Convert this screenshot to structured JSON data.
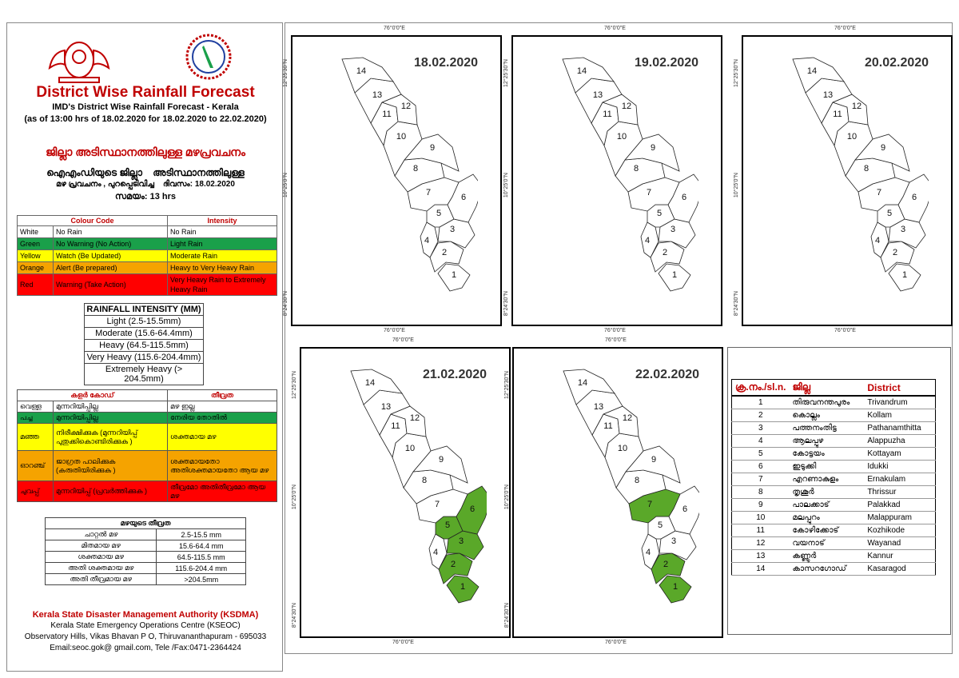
{
  "header": {
    "title": "District Wise Rainfall Forecast",
    "subtitle": "IMD's District Wise Rainfall Forecast - Kerala",
    "issued": "(as of 13:00 hrs of 18.02.2020  for 18.02.2020  to 22.02.2020)",
    "ml_title": "ജില്ലാ അടിസ്ഥാനത്തിലുള്ള മഴപ്രവചനം",
    "ml_line1": "ഐഎംഡിയുടെ ജില്ലാ    അടിസ്ഥാനത്തിലുള്ള",
    "ml_line2": "മഴ പ്രവചനം , പുറപ്പെടിവിച്ച    ദിവസം: 18.02.2020",
    "ml_line3": "സമയം: 13 hrs"
  },
  "colour_code": {
    "headers": [
      "Colour Code",
      "Intensity"
    ],
    "rows": [
      {
        "colour": "White",
        "code": "No Rain",
        "intensity": "No Rain"
      },
      {
        "colour": "Green",
        "code": "No Warning (No Action)",
        "intensity": "Light Rain"
      },
      {
        "colour": "Yellow",
        "code": "Watch (Be Updated)",
        "intensity": "Moderate Rain"
      },
      {
        "colour": "Orange",
        "code": "Alert (Be prepared)",
        "intensity": "Heavy to Very Heavy Rain"
      },
      {
        "colour": "Red",
        "code": "Warning (Take Action)",
        "intensity": "Very Heavy Rain to Extremely Heavy Rain"
      }
    ]
  },
  "rainfall_intensity": {
    "header": "RAINFALL INTENSITY (MM)",
    "rows": [
      "Light (2.5-15.5mm)",
      "Moderate (15.6-64.4mm)",
      "Heavy (64.5-115.5mm)",
      "Very Heavy (115.6-204.4mm)",
      "Extremely Heavy (> 204.5mm)"
    ]
  },
  "ml_colour_code": {
    "headers": [
      "കളർ കോഡ്",
      "തീവ്രത"
    ],
    "rows": [
      {
        "colour": "വെള്ള",
        "code": "മുന്നറിയിപ്പില്ല",
        "intensity": "മഴ ഇല്ല"
      },
      {
        "colour": "പച്ച",
        "code": "മുന്നറിയിപ്പില്ല",
        "intensity": "നേരിയ തോതിൽ"
      },
      {
        "colour": "മഞ്ഞ",
        "code": "നിരീക്ഷിക്കുക (മുന്നറിയിപ്പ് പുതുക്കികൊണ്ടിരിക്കുക )",
        "intensity": "ശക്തമായ മഴ"
      },
      {
        "colour": "ഓറഞ്ച്",
        "code": "ജാഗ്രത പാലിക്കുക (കരുതിയിരിക്കുക )",
        "intensity": "ശക്തമായതോ അതിശക്തമായതോ ആയ മഴ"
      },
      {
        "colour": "ചുവപ്പ്",
        "code": "മുന്നറിയിപ്പ് (പ്രവർത്തിക്കുക )",
        "intensity": "തീവ്രമോ അതിതീവ്രമോ ആയ മഴ"
      }
    ]
  },
  "ml_intensity": {
    "header": "മഴയുടെ തീവ്രത",
    "rows": [
      {
        "label": "ചാറ്റൽ മഴ",
        "range": "2.5-15.5 mm"
      },
      {
        "label": "മിതമായ മഴ",
        "range": "15.6-64.4 mm"
      },
      {
        "label": "ശക്തമായ മഴ",
        "range": "64.5-115.5 mm"
      },
      {
        "label": "അതി ശക്തമായ മഴ",
        "range": "115.6-204.4 mm"
      },
      {
        "label": "അതി തീവ്രമായ മഴ",
        "range": ">204.5mm"
      }
    ]
  },
  "footer": {
    "org": "Kerala State Disaster Management Authority (KSDMA)",
    "centre": "Kerala State Emergency Operations Centre (KSEOC)",
    "address": "Observatory Hills, Vikas Bhavan P O, Thiruvananthapuram - 695033",
    "contact": "Email:seoc.gok@ gmail.com, Tele /Fax:0471-2364424"
  },
  "coords": {
    "lon": "76°0'0\"E",
    "lat_top": "12°25'30\"N",
    "lat_mid": "10°25'0\"N",
    "lat_bot": "8°24'30\"N"
  },
  "maps": [
    {
      "date": "18.02.2020",
      "green_districts": []
    },
    {
      "date": "19.02.2020",
      "green_districts": []
    },
    {
      "date": "20.02.2020",
      "green_districts": []
    },
    {
      "date": "21.02.2020",
      "green_districts": [
        1,
        2,
        3,
        5,
        6
      ]
    },
    {
      "date": "22.02.2020",
      "green_districts": [
        1,
        2,
        7
      ]
    }
  ],
  "district_numbers": [
    "1",
    "2",
    "3",
    "4",
    "5",
    "6",
    "7",
    "8",
    "9",
    "10",
    "11",
    "12",
    "13",
    "14"
  ],
  "district_table": {
    "headers": [
      "ക്ര.നം./sl.n.",
      "ജില്ല",
      "District"
    ],
    "rows": [
      {
        "n": "1",
        "ml": "തിരുവനന്തപുരം",
        "en": "Trivandrum"
      },
      {
        "n": "2",
        "ml": "കൊല്ലം",
        "en": "Kollam"
      },
      {
        "n": "3",
        "ml": "പത്തനംതിട്ട",
        "en": "Pathanamthitta"
      },
      {
        "n": "4",
        "ml": "ആലപ്പുഴ",
        "en": "Alappuzha"
      },
      {
        "n": "5",
        "ml": "കോട്ടയം",
        "en": "Kottayam"
      },
      {
        "n": "6",
        "ml": "ഇടുക്കി",
        "en": "Idukki"
      },
      {
        "n": "7",
        "ml": "എറണാകുളം",
        "en": "Ernakulam"
      },
      {
        "n": "8",
        "ml": "തൃശൂർ",
        "en": "Thrissur"
      },
      {
        "n": "9",
        "ml": "പാലക്കാട്",
        "en": "Palakkad"
      },
      {
        "n": "10",
        "ml": "മലപ്പുറം",
        "en": "Malappuram"
      },
      {
        "n": "11",
        "ml": "കോഴിക്കോട്",
        "en": "Kozhikode"
      },
      {
        "n": "12",
        "ml": "വയനാട്",
        "en": "Wayanad"
      },
      {
        "n": "13",
        "ml": "കണ്ണൂർ",
        "en": "Kannur"
      },
      {
        "n": "14",
        "ml": "കാസറഗോഡ്",
        "en": "Kasaragod"
      }
    ]
  },
  "colors": {
    "title": "#c00000",
    "green": "#1aa04a",
    "forecast_green": "#5aa829",
    "yellow": "#ffff00",
    "orange": "#f5a300",
    "red": "#ff0000"
  }
}
